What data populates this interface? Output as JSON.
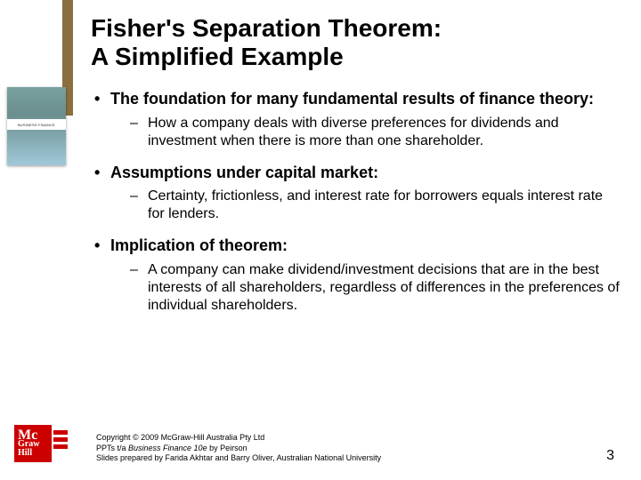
{
  "colors": {
    "brown_bar": "#8b6f3e",
    "logo_red": "#cc0000",
    "thumb_gradient": [
      "#7aa0a0",
      "#6b8e8e",
      "#a0c8d8"
    ]
  },
  "thumb": {
    "band_label": "BUSINESS FINANCE"
  },
  "title": {
    "line1": "Fisher's Separation Theorem:",
    "line2": "A Simplified Example"
  },
  "bullets": [
    {
      "text": "The foundation for many fundamental results of finance theory:",
      "sub": [
        "How a company deals with diverse preferences for dividends and investment when there is more than one shareholder."
      ]
    },
    {
      "text": "Assumptions under capital market:",
      "sub": [
        "Certainty, frictionless, and interest rate for borrowers equals interest rate for lenders."
      ]
    },
    {
      "text": "Implication of theorem:",
      "sub": [
        "A company can make dividend/investment decisions that are in the best interests of all shareholders, regardless of differences in the preferences of individual shareholders."
      ]
    }
  ],
  "footer": {
    "line1_prefix": "Copyright © 2009 McGraw-Hill Australia Pty Ltd",
    "line2_pre": "PPTs t/a ",
    "line2_ital": "Business Finance 10e",
    "line2_post": " by Peirson",
    "line3": "Slides prepared by Farida Akhtar and Barry Oliver, Australian National University",
    "page": "3"
  },
  "logo": {
    "l1": "Mc",
    "l2": "Graw",
    "l3": "Hill"
  }
}
